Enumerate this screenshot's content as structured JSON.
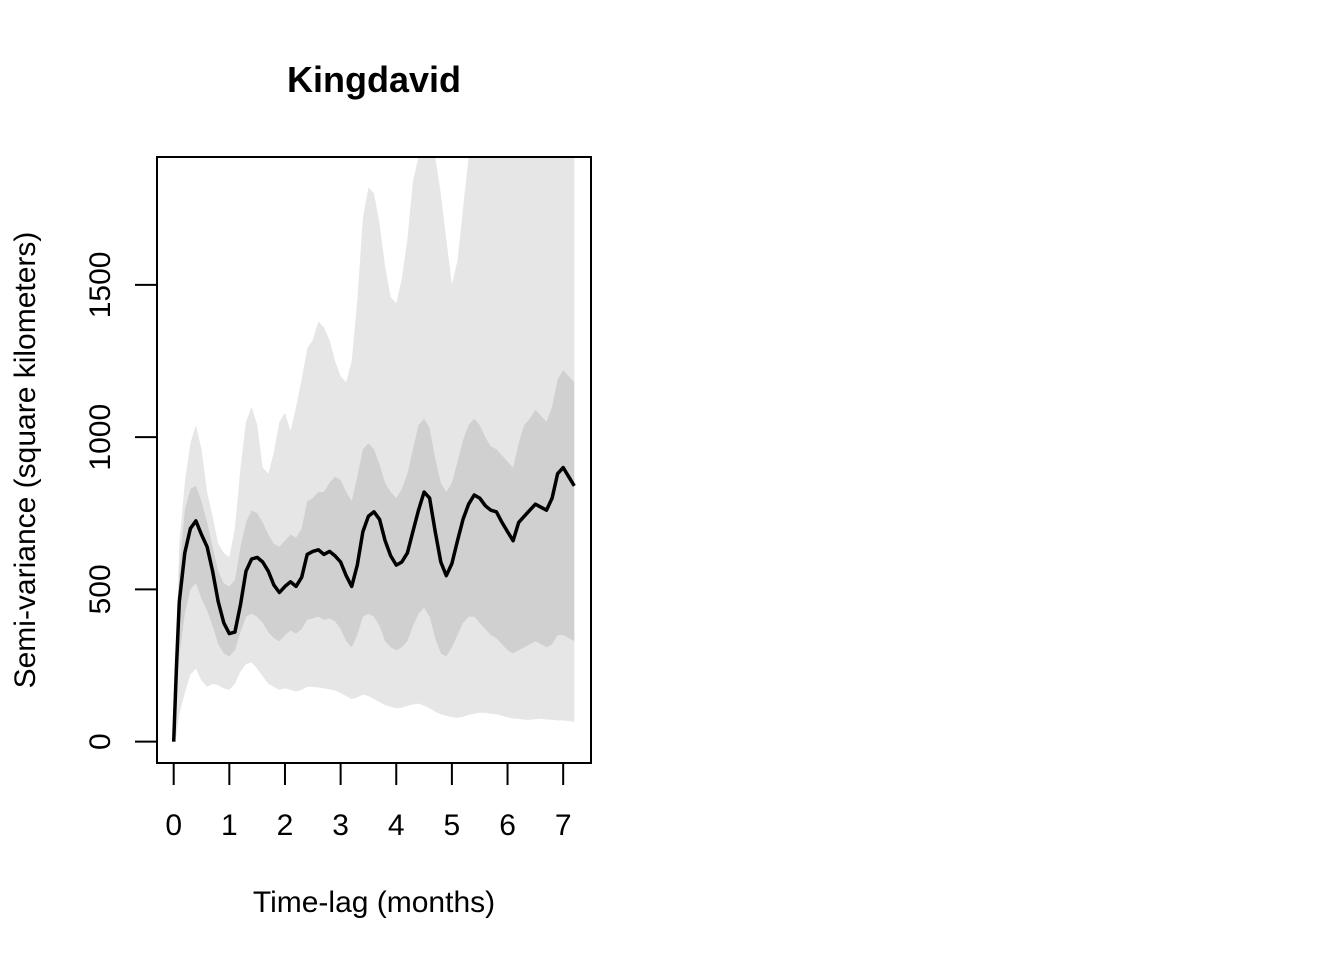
{
  "chart_data": {
    "type": "line",
    "title": "Kingdavid",
    "xlabel": "Time-lag (months)",
    "ylabel": "Semi-variance (square kilometers)",
    "xlim": [
      -0.3,
      7.5
    ],
    "ylim": [
      -70,
      1920
    ],
    "x_ticks": [
      0,
      1,
      2,
      3,
      4,
      5,
      6,
      7
    ],
    "y_ticks": [
      0,
      500,
      1000,
      1500
    ],
    "grid": false,
    "legend": "none",
    "colors": {
      "line": "#000000",
      "outer_band": "#e6e6e6",
      "inner_band": "#d0d0d0"
    },
    "series": [
      {
        "x": [
          0,
          0.05,
          0.1,
          0.2,
          0.3,
          0.4,
          0.5,
          0.6,
          0.7,
          0.8,
          0.9,
          1.0,
          1.1,
          1.2,
          1.3,
          1.4,
          1.5,
          1.6,
          1.7,
          1.8,
          1.9,
          2.0,
          2.1,
          2.2,
          2.3,
          2.4,
          2.5,
          2.6,
          2.7,
          2.8,
          2.9,
          3.0,
          3.1,
          3.2,
          3.3,
          3.4,
          3.5,
          3.6,
          3.7,
          3.8,
          3.9,
          4.0,
          4.1,
          4.2,
          4.3,
          4.4,
          4.5,
          4.6,
          4.7,
          4.8,
          4.9,
          5.0,
          5.1,
          5.2,
          5.3,
          5.4,
          5.5,
          5.6,
          5.7,
          5.8,
          5.9,
          6.0,
          6.1,
          6.2,
          6.3,
          6.4,
          6.5,
          6.6,
          6.7,
          6.8,
          6.9,
          7.0,
          7.1,
          7.2
        ],
        "y": [
          0,
          250,
          460,
          620,
          700,
          725,
          680,
          640,
          560,
          460,
          390,
          355,
          360,
          450,
          560,
          600,
          605,
          590,
          560,
          515,
          490,
          510,
          525,
          510,
          540,
          615,
          625,
          630,
          615,
          625,
          610,
          590,
          545,
          510,
          580,
          690,
          740,
          755,
          730,
          660,
          610,
          580,
          590,
          620,
          690,
          760,
          820,
          800,
          690,
          590,
          545,
          585,
          660,
          730,
          780,
          810,
          800,
          775,
          760,
          755,
          720,
          690,
          660,
          720,
          740,
          760,
          780,
          770,
          760,
          800,
          880,
          900,
          870,
          840
        ],
        "lo95": [
          0,
          20,
          90,
          160,
          220,
          240,
          200,
          180,
          190,
          185,
          175,
          170,
          190,
          230,
          255,
          260,
          240,
          215,
          190,
          180,
          170,
          175,
          170,
          165,
          170,
          180,
          180,
          178,
          175,
          172,
          168,
          160,
          150,
          140,
          145,
          155,
          150,
          140,
          130,
          120,
          115,
          110,
          112,
          118,
          122,
          125,
          118,
          110,
          98,
          90,
          85,
          80,
          78,
          82,
          88,
          92,
          95,
          95,
          92,
          90,
          85,
          80,
          76,
          75,
          72,
          72,
          74,
          75,
          73,
          72,
          70,
          70,
          68,
          65
        ],
        "hi95": [
          0,
          350,
          650,
          850,
          980,
          1040,
          960,
          820,
          740,
          650,
          620,
          605,
          700,
          900,
          1050,
          1100,
          1040,
          900,
          880,
          950,
          1050,
          1080,
          1020,
          1100,
          1190,
          1290,
          1320,
          1380,
          1360,
          1320,
          1250,
          1200,
          1180,
          1250,
          1450,
          1720,
          1820,
          1800,
          1700,
          1560,
          1460,
          1440,
          1520,
          1650,
          1840,
          1920,
          1920,
          1920,
          1920,
          1800,
          1650,
          1500,
          1580,
          1750,
          1920,
          1920,
          1920,
          1920,
          1920,
          1920,
          1920,
          1920,
          1920,
          1920,
          1920,
          1920,
          1920,
          1920,
          1920,
          1920,
          1920,
          1920,
          1920,
          1920
        ],
        "lo50": [
          0,
          150,
          280,
          420,
          500,
          520,
          470,
          430,
          380,
          320,
          290,
          280,
          300,
          360,
          410,
          420,
          410,
          390,
          360,
          340,
          330,
          350,
          365,
          355,
          370,
          400,
          405,
          410,
          400,
          405,
          395,
          370,
          330,
          310,
          350,
          410,
          420,
          410,
          380,
          330,
          310,
          300,
          310,
          330,
          380,
          420,
          440,
          410,
          340,
          290,
          280,
          310,
          350,
          390,
          410,
          410,
          390,
          370,
          350,
          340,
          320,
          300,
          290,
          300,
          310,
          320,
          330,
          320,
          310,
          320,
          350,
          350,
          340,
          330
        ],
        "hi50": [
          0,
          320,
          560,
          760,
          830,
          840,
          790,
          720,
          640,
          560,
          520,
          510,
          530,
          640,
          720,
          760,
          750,
          720,
          680,
          650,
          640,
          660,
          680,
          670,
          700,
          790,
          800,
          820,
          820,
          850,
          870,
          860,
          820,
          790,
          870,
          960,
          980,
          960,
          910,
          850,
          820,
          800,
          830,
          880,
          960,
          1040,
          1060,
          1030,
          930,
          850,
          820,
          850,
          920,
          990,
          1040,
          1060,
          1040,
          1000,
          970,
          960,
          940,
          920,
          900,
          980,
          1040,
          1060,
          1090,
          1070,
          1050,
          1100,
          1190,
          1220,
          1200,
          1180
        ]
      }
    ]
  }
}
